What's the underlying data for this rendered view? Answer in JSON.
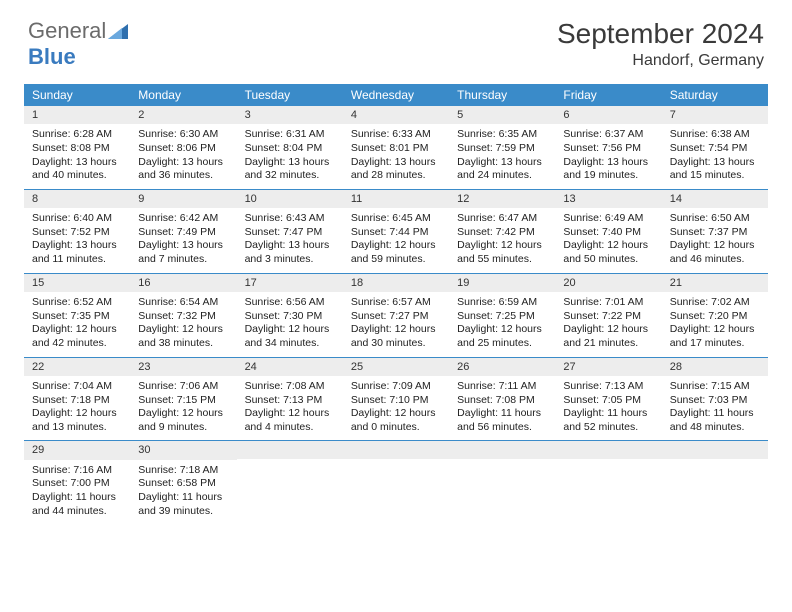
{
  "brand": {
    "general": "General",
    "blue": "Blue"
  },
  "title": {
    "month": "September 2024",
    "location": "Handorf, Germany"
  },
  "colors": {
    "header_bg": "#3a8bc9",
    "header_text": "#ffffff",
    "daynum_bg": "#ededed",
    "border": "#3a8bc9",
    "logo_gray": "#6b6b6b",
    "logo_blue": "#3a7bbf",
    "text": "#222222"
  },
  "day_headers": [
    "Sunday",
    "Monday",
    "Tuesday",
    "Wednesday",
    "Thursday",
    "Friday",
    "Saturday"
  ],
  "weeks": [
    [
      {
        "n": "1",
        "sunrise": "Sunrise: 6:28 AM",
        "sunset": "Sunset: 8:08 PM",
        "day": "Daylight: 13 hours and 40 minutes."
      },
      {
        "n": "2",
        "sunrise": "Sunrise: 6:30 AM",
        "sunset": "Sunset: 8:06 PM",
        "day": "Daylight: 13 hours and 36 minutes."
      },
      {
        "n": "3",
        "sunrise": "Sunrise: 6:31 AM",
        "sunset": "Sunset: 8:04 PM",
        "day": "Daylight: 13 hours and 32 minutes."
      },
      {
        "n": "4",
        "sunrise": "Sunrise: 6:33 AM",
        "sunset": "Sunset: 8:01 PM",
        "day": "Daylight: 13 hours and 28 minutes."
      },
      {
        "n": "5",
        "sunrise": "Sunrise: 6:35 AM",
        "sunset": "Sunset: 7:59 PM",
        "day": "Daylight: 13 hours and 24 minutes."
      },
      {
        "n": "6",
        "sunrise": "Sunrise: 6:37 AM",
        "sunset": "Sunset: 7:56 PM",
        "day": "Daylight: 13 hours and 19 minutes."
      },
      {
        "n": "7",
        "sunrise": "Sunrise: 6:38 AM",
        "sunset": "Sunset: 7:54 PM",
        "day": "Daylight: 13 hours and 15 minutes."
      }
    ],
    [
      {
        "n": "8",
        "sunrise": "Sunrise: 6:40 AM",
        "sunset": "Sunset: 7:52 PM",
        "day": "Daylight: 13 hours and 11 minutes."
      },
      {
        "n": "9",
        "sunrise": "Sunrise: 6:42 AM",
        "sunset": "Sunset: 7:49 PM",
        "day": "Daylight: 13 hours and 7 minutes."
      },
      {
        "n": "10",
        "sunrise": "Sunrise: 6:43 AM",
        "sunset": "Sunset: 7:47 PM",
        "day": "Daylight: 13 hours and 3 minutes."
      },
      {
        "n": "11",
        "sunrise": "Sunrise: 6:45 AM",
        "sunset": "Sunset: 7:44 PM",
        "day": "Daylight: 12 hours and 59 minutes."
      },
      {
        "n": "12",
        "sunrise": "Sunrise: 6:47 AM",
        "sunset": "Sunset: 7:42 PM",
        "day": "Daylight: 12 hours and 55 minutes."
      },
      {
        "n": "13",
        "sunrise": "Sunrise: 6:49 AM",
        "sunset": "Sunset: 7:40 PM",
        "day": "Daylight: 12 hours and 50 minutes."
      },
      {
        "n": "14",
        "sunrise": "Sunrise: 6:50 AM",
        "sunset": "Sunset: 7:37 PM",
        "day": "Daylight: 12 hours and 46 minutes."
      }
    ],
    [
      {
        "n": "15",
        "sunrise": "Sunrise: 6:52 AM",
        "sunset": "Sunset: 7:35 PM",
        "day": "Daylight: 12 hours and 42 minutes."
      },
      {
        "n": "16",
        "sunrise": "Sunrise: 6:54 AM",
        "sunset": "Sunset: 7:32 PM",
        "day": "Daylight: 12 hours and 38 minutes."
      },
      {
        "n": "17",
        "sunrise": "Sunrise: 6:56 AM",
        "sunset": "Sunset: 7:30 PM",
        "day": "Daylight: 12 hours and 34 minutes."
      },
      {
        "n": "18",
        "sunrise": "Sunrise: 6:57 AM",
        "sunset": "Sunset: 7:27 PM",
        "day": "Daylight: 12 hours and 30 minutes."
      },
      {
        "n": "19",
        "sunrise": "Sunrise: 6:59 AM",
        "sunset": "Sunset: 7:25 PM",
        "day": "Daylight: 12 hours and 25 minutes."
      },
      {
        "n": "20",
        "sunrise": "Sunrise: 7:01 AM",
        "sunset": "Sunset: 7:22 PM",
        "day": "Daylight: 12 hours and 21 minutes."
      },
      {
        "n": "21",
        "sunrise": "Sunrise: 7:02 AM",
        "sunset": "Sunset: 7:20 PM",
        "day": "Daylight: 12 hours and 17 minutes."
      }
    ],
    [
      {
        "n": "22",
        "sunrise": "Sunrise: 7:04 AM",
        "sunset": "Sunset: 7:18 PM",
        "day": "Daylight: 12 hours and 13 minutes."
      },
      {
        "n": "23",
        "sunrise": "Sunrise: 7:06 AM",
        "sunset": "Sunset: 7:15 PM",
        "day": "Daylight: 12 hours and 9 minutes."
      },
      {
        "n": "24",
        "sunrise": "Sunrise: 7:08 AM",
        "sunset": "Sunset: 7:13 PM",
        "day": "Daylight: 12 hours and 4 minutes."
      },
      {
        "n": "25",
        "sunrise": "Sunrise: 7:09 AM",
        "sunset": "Sunset: 7:10 PM",
        "day": "Daylight: 12 hours and 0 minutes."
      },
      {
        "n": "26",
        "sunrise": "Sunrise: 7:11 AM",
        "sunset": "Sunset: 7:08 PM",
        "day": "Daylight: 11 hours and 56 minutes."
      },
      {
        "n": "27",
        "sunrise": "Sunrise: 7:13 AM",
        "sunset": "Sunset: 7:05 PM",
        "day": "Daylight: 11 hours and 52 minutes."
      },
      {
        "n": "28",
        "sunrise": "Sunrise: 7:15 AM",
        "sunset": "Sunset: 7:03 PM",
        "day": "Daylight: 11 hours and 48 minutes."
      }
    ],
    [
      {
        "n": "29",
        "sunrise": "Sunrise: 7:16 AM",
        "sunset": "Sunset: 7:00 PM",
        "day": "Daylight: 11 hours and 44 minutes."
      },
      {
        "n": "30",
        "sunrise": "Sunrise: 7:18 AM",
        "sunset": "Sunset: 6:58 PM",
        "day": "Daylight: 11 hours and 39 minutes."
      },
      null,
      null,
      null,
      null,
      null
    ]
  ]
}
